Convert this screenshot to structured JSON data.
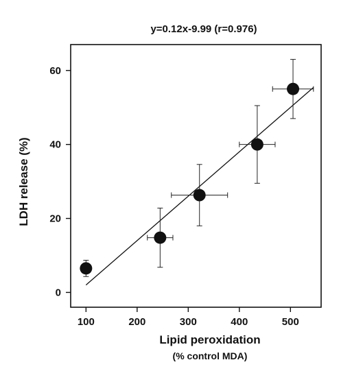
{
  "chart_data": {
    "type": "scatter",
    "title": "y=0.12x-9.99 (r=0.976)",
    "xlabel": "Lipid peroxidation",
    "xlabel_sub": "(% control MDA)",
    "ylabel": "LDH release (%)",
    "xlim": [
      70,
      560
    ],
    "ylim": [
      -4,
      67
    ],
    "xticks": [
      100,
      200,
      300,
      400,
      500
    ],
    "yticks": [
      0,
      20,
      40,
      60
    ],
    "grid": false,
    "legend": "none",
    "points": [
      {
        "x": 100,
        "y": 6.5,
        "x_err": 0,
        "y_err": 2.2
      },
      {
        "x": 245,
        "y": 14.8,
        "x_err": 25,
        "y_err": 8.0
      },
      {
        "x": 322,
        "y": 26.3,
        "x_err": 55,
        "y_err": 8.3
      },
      {
        "x": 435,
        "y": 40.0,
        "x_err": 35,
        "y_err": 10.5
      },
      {
        "x": 505,
        "y": 55.0,
        "x_err": 40,
        "y_err": 8.0
      }
    ],
    "fit": {
      "slope": 0.12,
      "intercept": -9.99,
      "x_range": [
        100,
        545
      ]
    }
  }
}
